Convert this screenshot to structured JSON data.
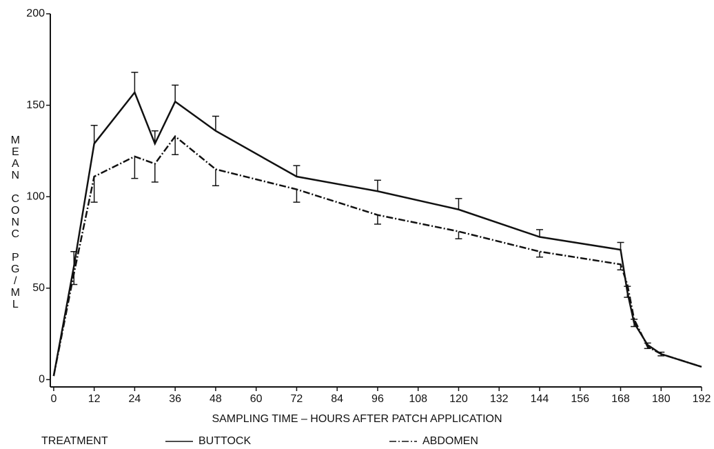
{
  "chart_data": {
    "type": "line",
    "xlabel": "SAMPLING TIME – HOURS AFTER PATCH APPLICATION",
    "ylabel": "MEAN CONC PG/ML",
    "legend_title": "TREATMENT",
    "x": [
      0,
      6,
      12,
      24,
      30,
      36,
      48,
      72,
      96,
      120,
      144,
      168,
      170,
      172,
      176,
      180,
      192
    ],
    "series": [
      {
        "name": "BUTTOCK",
        "color": "#111111",
        "dash": "solid",
        "error_direction": "up",
        "values": [
          2,
          62,
          129,
          157,
          129,
          152,
          136,
          111,
          103,
          93,
          78,
          71,
          48,
          31,
          19,
          14,
          7
        ],
        "errors": [
          null,
          8,
          10,
          11,
          7,
          9,
          8,
          6,
          6,
          6,
          4,
          4,
          3,
          2,
          1,
          1,
          null
        ]
      },
      {
        "name": "ABDOMEN",
        "color": "#111111",
        "dash": "dashdot",
        "error_direction": "down",
        "values": [
          2,
          58,
          111,
          122,
          118,
          133,
          115,
          104,
          90,
          81,
          70,
          63,
          52,
          33,
          18,
          14,
          7
        ],
        "errors": [
          null,
          6,
          14,
          12,
          10,
          10,
          9,
          7,
          5,
          4,
          3,
          3,
          7,
          4,
          1,
          1,
          null
        ]
      }
    ],
    "xlim": [
      -1,
      192
    ],
    "ylim": [
      -4,
      200
    ],
    "xticks": [
      0,
      12,
      24,
      36,
      48,
      60,
      72,
      84,
      96,
      108,
      120,
      132,
      144,
      156,
      168,
      180,
      192
    ],
    "yticks": [
      0,
      50,
      100,
      150,
      200
    ],
    "grid": false
  }
}
